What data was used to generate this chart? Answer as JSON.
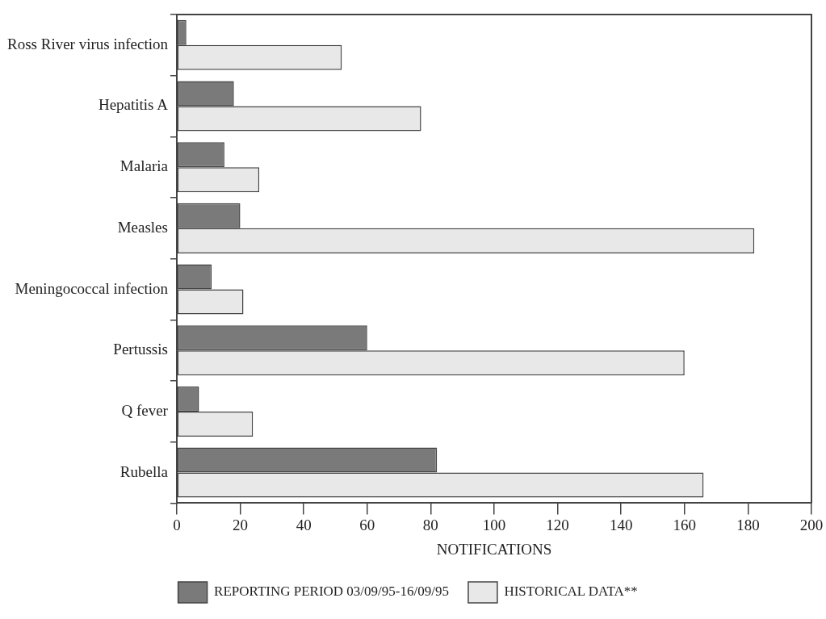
{
  "chart_data": {
    "type": "bar",
    "orientation": "horizontal",
    "xlabel": "NOTIFICATIONS",
    "categories": [
      "Ross River virus infection",
      "Hepatitis A",
      "Malaria",
      "Measles",
      "Meningococcal infection",
      "Pertussis",
      "Q fever",
      "Rubella"
    ],
    "series": [
      {
        "name": "REPORTING PERIOD 03/09/95-16/09/95",
        "color": "#7a7a7a",
        "values": [
          3,
          18,
          15,
          20,
          11,
          60,
          7,
          82
        ]
      },
      {
        "name": "HISTORICAL DATA**",
        "color": "#e8e8e8",
        "values": [
          52,
          77,
          26,
          182,
          21,
          160,
          24,
          166
        ]
      }
    ],
    "xlim": [
      0,
      200
    ],
    "xticks": [
      0,
      20,
      40,
      60,
      80,
      100,
      120,
      140,
      160,
      180,
      200
    ],
    "grid": false,
    "legend": "bottom"
  }
}
